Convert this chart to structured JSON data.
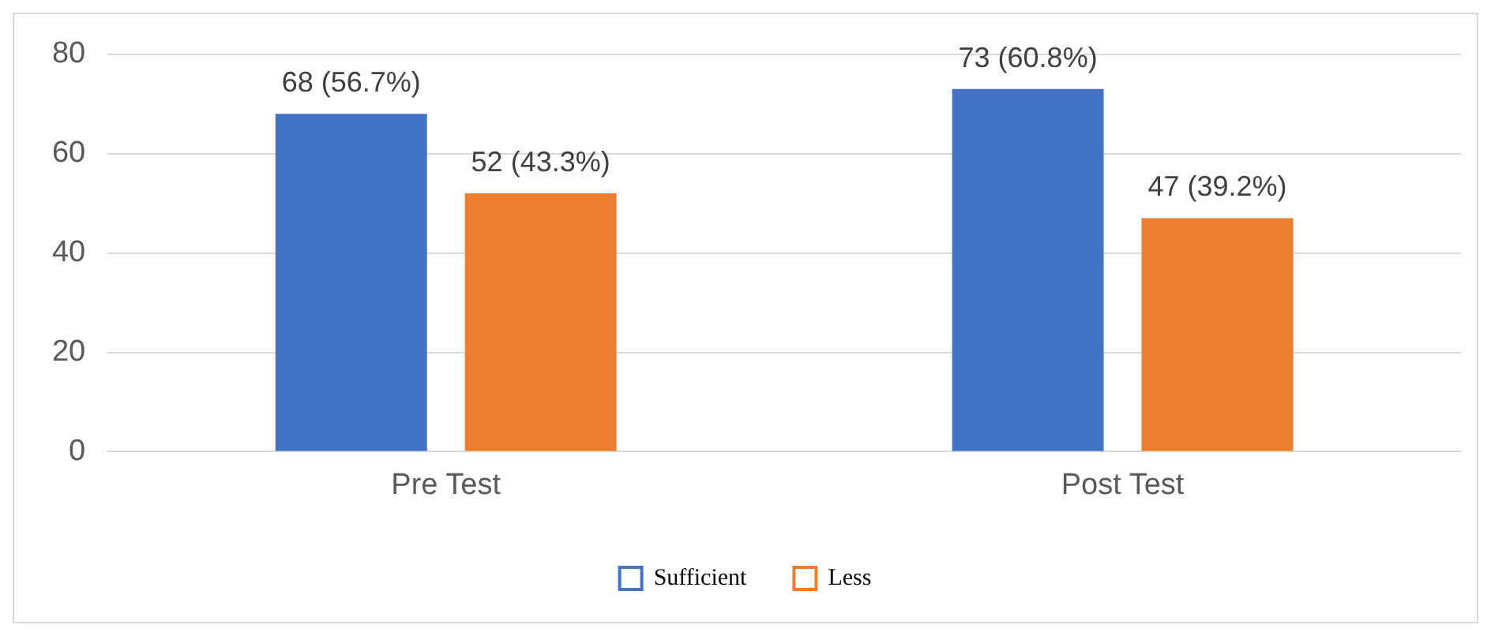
{
  "chart_data": {
    "type": "bar",
    "categories": [
      "Pre Test",
      "Post Test"
    ],
    "series": [
      {
        "name": "Sufficient",
        "color": "#4472c4",
        "values": [
          68,
          73
        ],
        "value_labels": [
          "68 (56.7%)",
          "73 (60.8%)"
        ]
      },
      {
        "name": "Less",
        "color": "#ed7d31",
        "values": [
          52,
          47
        ],
        "value_labels": [
          "52 (43.3%)",
          "47 (39.2%)"
        ]
      }
    ],
    "ylim": [
      0,
      80
    ],
    "yticks": [
      0,
      20,
      40,
      60,
      80
    ],
    "grid": "y",
    "legend": "bottom"
  }
}
